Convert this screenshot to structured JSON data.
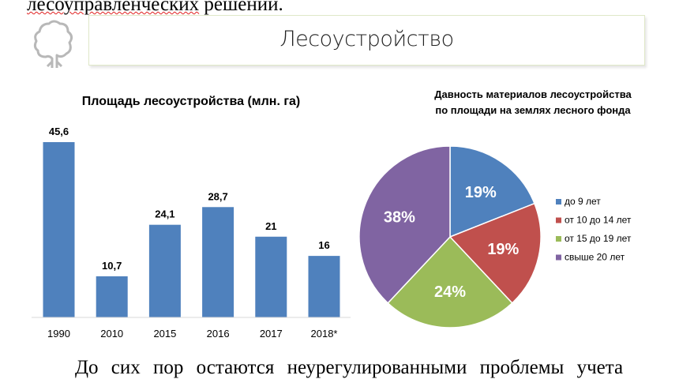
{
  "document": {
    "top_text_misspelled": "лесоуправленческих",
    "top_text_rest": " решений.",
    "bottom_text": "До сих пор остаются неурегулированными проблемы учета"
  },
  "banner": {
    "title": "Лесоустройство",
    "icon": "tree-icon"
  },
  "chart_data": [
    {
      "type": "bar",
      "title": "Площадь лесоустройства (млн. га)",
      "categories": [
        "1990",
        "2010",
        "2015",
        "2016",
        "2017",
        "2018*"
      ],
      "values": [
        45.6,
        10.7,
        24.1,
        28.7,
        21,
        16
      ],
      "data_labels": [
        "45,6",
        "10,7",
        "24,1",
        "28,7",
        "21",
        "16"
      ],
      "xlabel": "",
      "ylabel": "",
      "ylim": [
        0,
        45.6
      ],
      "color": "#4f81bd",
      "grid": false
    },
    {
      "type": "pie",
      "title_lines": [
        "Давность материалов лесоустройства",
        "по площади на землях лесного фонда"
      ],
      "labels": [
        "до 9 лет",
        "от 10 до 14 лет",
        "от 15 до 19 лет",
        "свыше 20 лет"
      ],
      "values": [
        19,
        19,
        24,
        38
      ],
      "data_labels": [
        "19%",
        "19%",
        "24%",
        "38%"
      ],
      "colors": [
        "#4f81bd",
        "#c0504d",
        "#9bbb59",
        "#8064a2"
      ],
      "legend": "right"
    }
  ]
}
